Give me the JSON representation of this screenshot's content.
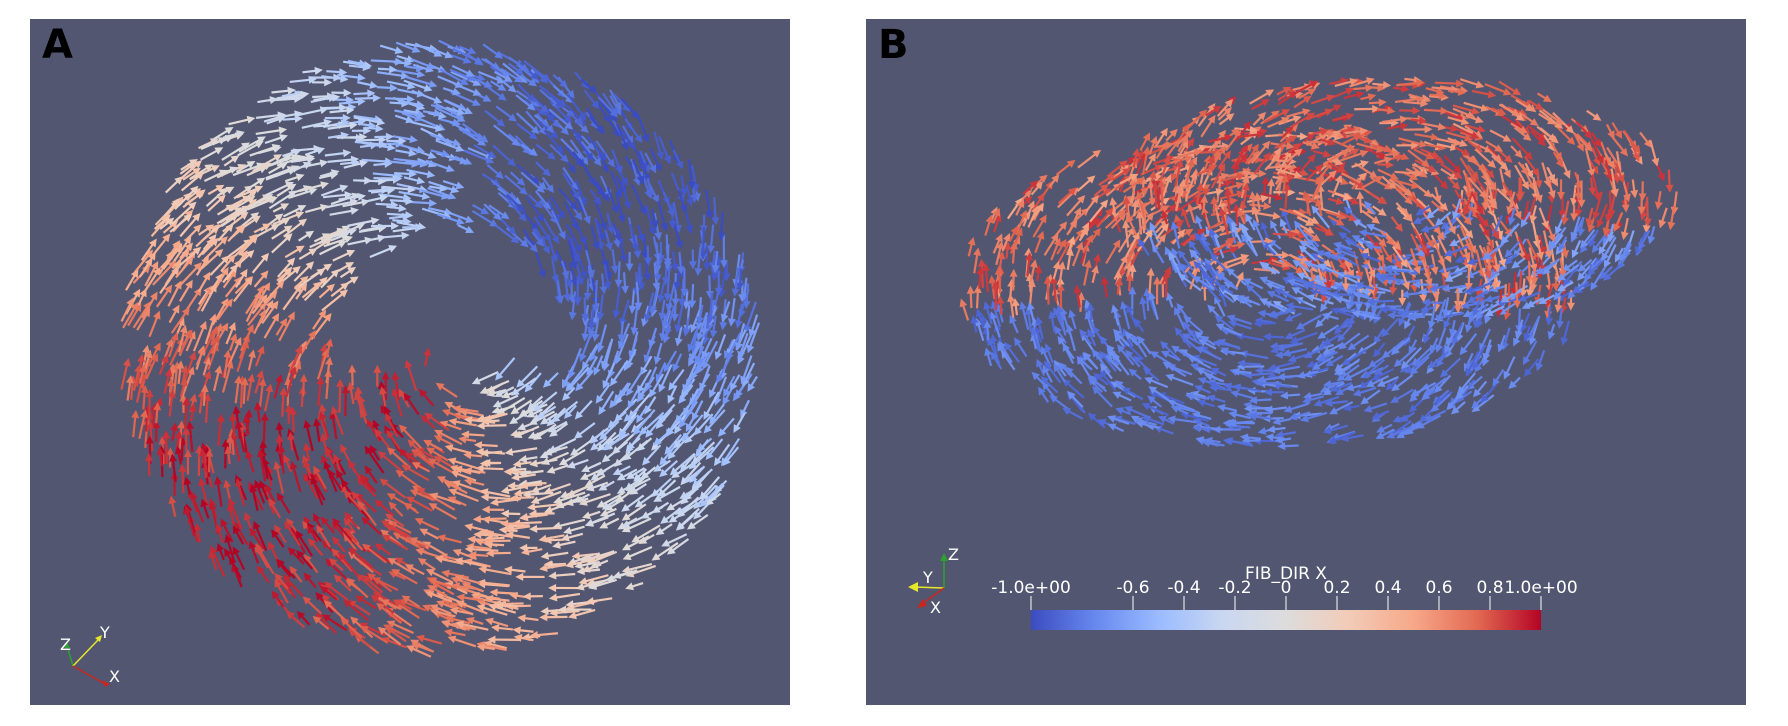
{
  "panels": [
    {
      "label": "A",
      "axes": {
        "z": "Z",
        "y": "Y",
        "x": "X"
      }
    },
    {
      "label": "B",
      "axes": {
        "z": "Z",
        "y": "Y",
        "x": "X"
      }
    }
  ],
  "colorbar": {
    "title": "FIB_DIR X",
    "min": -1.0,
    "max": 1.0,
    "tick_labels": [
      "-1.0e+00",
      "-0.6",
      "-0.4",
      "-0.2",
      "0",
      "0.2",
      "0.4",
      "0.6",
      "0.8",
      "1.0e+00"
    ],
    "tick_values": [
      -1.0,
      -0.6,
      -0.4,
      -0.2,
      0,
      0.2,
      0.4,
      0.6,
      0.8,
      1.0
    ],
    "colors": [
      "#3b4cc0",
      "#6788ee",
      "#9abbff",
      "#c9d7f0",
      "#dddcdc",
      "#f2cbb7",
      "#f7a889",
      "#e26952",
      "#b40426"
    ]
  },
  "colors": {
    "background": "#525670",
    "axis_x": "#c8271e",
    "axis_y": "#e7e72a",
    "axis_z": "#2fa02f"
  }
}
